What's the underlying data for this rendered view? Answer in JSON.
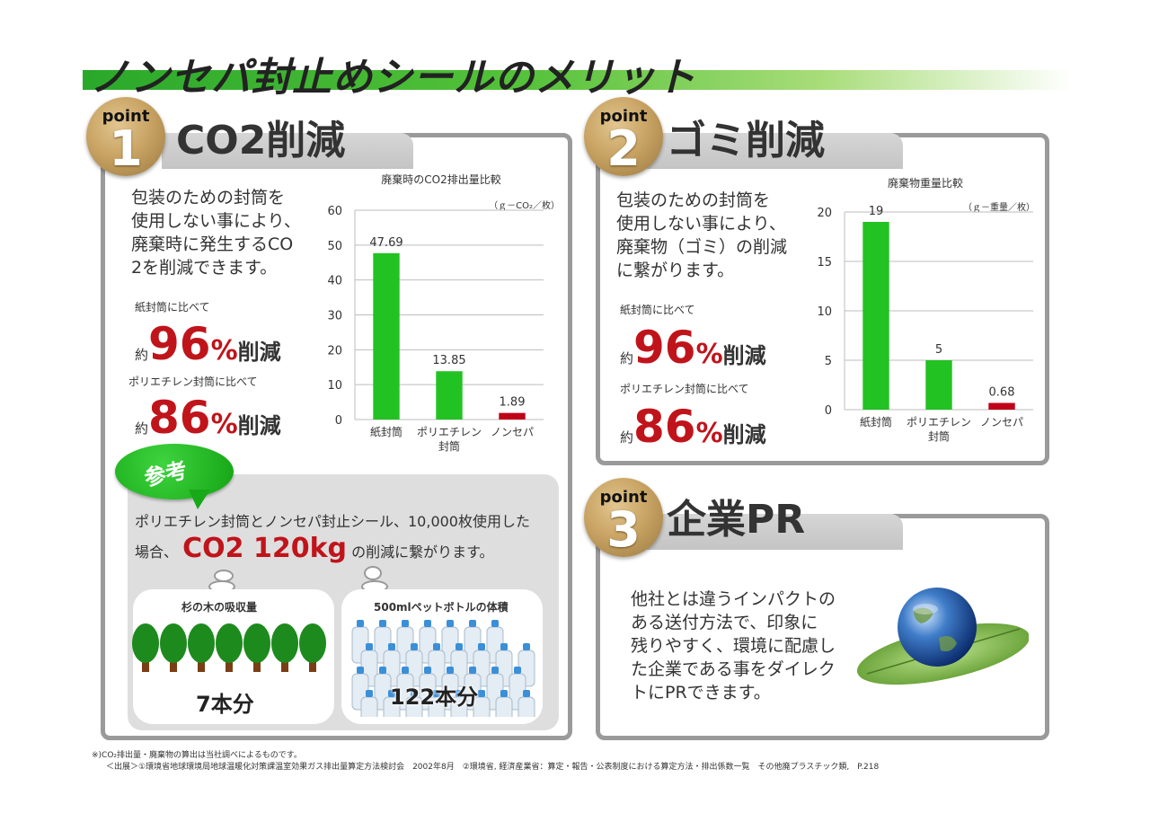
{
  "title": "ノンセパ封止めシールのメリット",
  "badge_word": "point",
  "sections": [
    {
      "number": "1",
      "title": "CO2削減",
      "description": [
        "包装のための封筒を",
        "使用しない事により、",
        "廃棄時に発生するCO",
        "2を削減できます。"
      ],
      "compare_paper": "紙封筒に比べて",
      "compare_poly": "ポリエチレン封筒に比べて",
      "approx": "約",
      "pct_paper": "96",
      "pct_poly": "86",
      "pct_sign": "%",
      "reduce": "削減"
    },
    {
      "number": "2",
      "title": "ゴミ削減",
      "description": [
        "包装のための封筒を",
        "使用しない事により、",
        "廃棄物（ゴミ）の削減",
        "に繋がります。"
      ],
      "compare_paper": "紙封筒に比べて",
      "compare_poly": "ポリエチレン封筒に比べて",
      "approx": "約",
      "pct_paper": "96",
      "pct_poly": "86",
      "pct_sign": "%",
      "reduce": "削減"
    },
    {
      "number": "3",
      "title": "企業PR",
      "description": [
        "他社とは違うインパクトの",
        "ある送付方法で、印象に",
        "残りやすく、環境に配慮し",
        "た企業である事をダイレク",
        "トにPRできます。"
      ]
    }
  ],
  "reference": {
    "label": "参考",
    "line1": "ポリエチレン封筒とノンセパ封止シール、10,000枚使用した",
    "line2_prefix": "場合、",
    "co2_value": "CO2 120kg",
    "line2_suffix": "の削減に繋がります。",
    "trees_title": "杉の木の吸収量",
    "trees_count": "7本分",
    "bottles_title": "500mlペットボトルの体積",
    "bottles_count": "122本分"
  },
  "footnotes": [
    "※)CO₂排出量・廃棄物の算出は当社調べによるものです。",
    "＜出展＞①環境省地球環境局地球温暖化対策課温室効果ガス排出量算定方法検討会　2002年8月　②環境省, 経済産業省：算定・報告・公表制度における算定方法・排出係数一覧　その他廃プラスチック類,　P.218"
  ],
  "colors": {
    "bar_green": "#22c222",
    "bar_red": "#c00018",
    "accent_red": "#c0141b",
    "title_green": "#2aa82a"
  },
  "chart_data": [
    {
      "type": "bar",
      "title": "廃棄時のCO2排出量比較",
      "unit": "（ｇ－CO₂／枚）",
      "categories": [
        "紙封筒",
        "ポリエチレン\n封筒",
        "ノンセパ"
      ],
      "values": [
        47.69,
        13.85,
        1.89
      ],
      "value_labels": [
        "47.69",
        "13.85",
        "1.89"
      ],
      "bar_colors": [
        "#22c222",
        "#22c222",
        "#c00018"
      ],
      "ylim": [
        0,
        60
      ],
      "yticks": [
        0,
        10,
        20,
        30,
        40,
        50,
        60
      ],
      "grid": true
    },
    {
      "type": "bar",
      "title": "廃棄物重量比較",
      "unit": "（ｇ－重量／枚）",
      "categories": [
        "紙封筒",
        "ポリエチレン\n封筒",
        "ノンセパ"
      ],
      "values": [
        19,
        5,
        0.68
      ],
      "value_labels": [
        "19",
        "5",
        "0.68"
      ],
      "bar_colors": [
        "#22c222",
        "#22c222",
        "#c00018"
      ],
      "ylim": [
        0,
        20
      ],
      "yticks": [
        0,
        5,
        10,
        15,
        20
      ],
      "grid": true
    }
  ]
}
